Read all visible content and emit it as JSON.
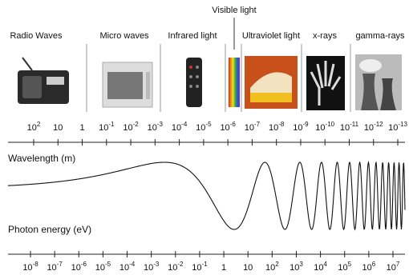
{
  "visible_label": "Visible light",
  "bands": [
    {
      "label": "Radio Waves"
    },
    {
      "label": "Micro waves"
    },
    {
      "label": "Infrared light"
    },
    {
      "label": "Ultraviolet light"
    },
    {
      "label": "x-rays"
    },
    {
      "label": "gamma-rays"
    }
  ],
  "wavelength": {
    "label": "Wavelength (m)",
    "ticks": [
      {
        "base": "10",
        "exponent": "2"
      },
      {
        "base": "10"
      },
      {
        "base": "1"
      },
      {
        "base": "10",
        "exponent": "-1"
      },
      {
        "base": "10",
        "exponent": "-2"
      },
      {
        "base": "10",
        "exponent": "-3"
      },
      {
        "base": "10",
        "exponent": "-4"
      },
      {
        "base": "10",
        "exponent": "-5"
      },
      {
        "base": "10",
        "exponent": "-6"
      },
      {
        "base": "10",
        "exponent": "-7"
      },
      {
        "base": "10",
        "exponent": "-8"
      },
      {
        "base": "10",
        "exponent": "-9"
      },
      {
        "base": "10",
        "exponent": "-10"
      },
      {
        "base": "10",
        "exponent": "-11"
      },
      {
        "base": "10",
        "exponent": "-12"
      },
      {
        "base": "10",
        "exponent": "-13"
      }
    ]
  },
  "photon_energy": {
    "label": "Photon energy (eV)",
    "ticks": [
      {
        "base": "10",
        "exponent": "-8"
      },
      {
        "base": "10",
        "exponent": "-7"
      },
      {
        "base": "10",
        "exponent": "-6"
      },
      {
        "base": "10",
        "exponent": "-5"
      },
      {
        "base": "10",
        "exponent": "-4"
      },
      {
        "base": "10",
        "exponent": "-3"
      },
      {
        "base": "10",
        "exponent": "-2"
      },
      {
        "base": "10",
        "exponent": "-1"
      },
      {
        "base": "1"
      },
      {
        "base": "10"
      },
      {
        "base": "10",
        "exponent": "2"
      },
      {
        "base": "10",
        "exponent": "3"
      },
      {
        "base": "10",
        "exponent": "4"
      },
      {
        "base": "10",
        "exponent": "5"
      },
      {
        "base": "10",
        "exponent": "6"
      },
      {
        "base": "10",
        "exponent": "7"
      }
    ]
  }
}
